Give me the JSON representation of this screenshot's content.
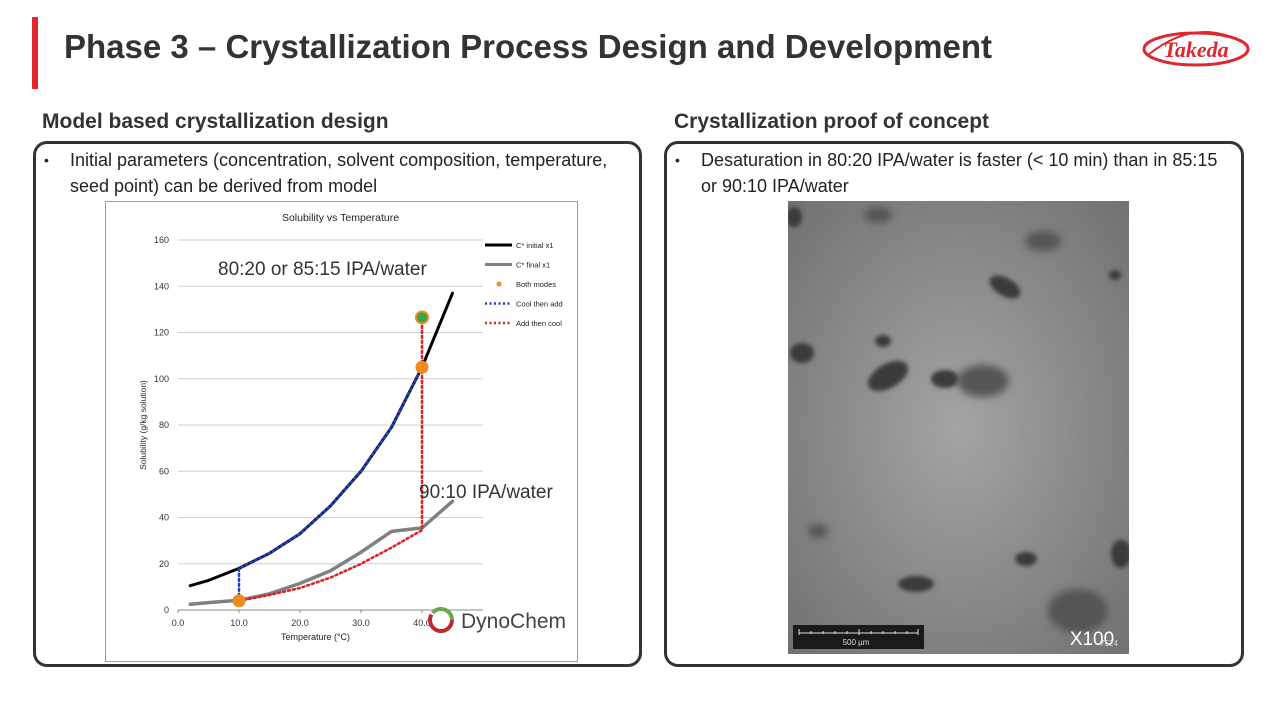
{
  "header": {
    "title": "Phase 3 – Crystallization Process Design and Development",
    "logo_text": "Takeda",
    "accent_color": "#e0262f"
  },
  "left": {
    "heading": "Model based crystallization design",
    "bullet": "Initial parameters (concentration, solvent composition, temperature, seed point) can be derived from model"
  },
  "right": {
    "heading": "Crystallization proof of concept",
    "bullet": "Desaturation in 80:20 IPA/water is faster (< 10 min) than in 85:15 or 90:10 IPA/water",
    "image": {
      "scale_label": "500 µm",
      "magnification": "X100",
      "corner_code": "7524"
    }
  },
  "chart_data": {
    "type": "line",
    "title": "Solubility vs Temperature",
    "xlabel": "Temperature (°C)",
    "ylabel": "Solubility (g/kg solution)",
    "xlim": [
      0,
      50
    ],
    "ylim": [
      0,
      160
    ],
    "x_ticks": [
      "0.0",
      "10.0",
      "20.0",
      "30.0",
      "40.0"
    ],
    "y_ticks": [
      "0",
      "20",
      "40",
      "60",
      "80",
      "100",
      "120",
      "140",
      "160"
    ],
    "grid": "horizontal",
    "legend_position": "right",
    "annotations": [
      {
        "text": "80:20 or 85:15 IPA/water"
      },
      {
        "text": "90:10 IPA/water"
      }
    ],
    "branding": "DynoChem",
    "series": [
      {
        "name": "C* initial x1",
        "color": "#000000",
        "style": "solid",
        "x": [
          2,
          5,
          10,
          15,
          20,
          25,
          30,
          35,
          40,
          45
        ],
        "y": [
          10.5,
          12.8,
          18,
          24.5,
          33,
          45,
          60,
          79,
          105,
          137
        ]
      },
      {
        "name": "C* final x1",
        "color": "#808080",
        "style": "solid",
        "x": [
          2,
          5,
          10,
          15,
          20,
          25,
          30,
          35,
          40,
          45
        ],
        "y": [
          2.5,
          3.2,
          4.2,
          7,
          11.5,
          17,
          25,
          34,
          35.5,
          47
        ]
      },
      {
        "name": "Both modes",
        "color": "#f08a1c",
        "style": "marker",
        "x": [
          10,
          40
        ],
        "y": [
          4,
          105
        ]
      },
      {
        "name": "Cool then add",
        "color": "#1f3fbf",
        "style": "dotted",
        "x": [
          10,
          10,
          15,
          20,
          25,
          30,
          35,
          40
        ],
        "y": [
          4,
          18,
          24.5,
          33,
          45,
          60,
          79,
          105
        ]
      },
      {
        "name": "Add then cool",
        "color": "#e02020",
        "style": "dotted",
        "x": [
          10,
          15,
          20,
          25,
          30,
          35,
          40,
          40,
          40
        ],
        "y": [
          4,
          6.5,
          9.5,
          14,
          20,
          27,
          34.5,
          105,
          125
        ]
      }
    ],
    "extra_points": [
      {
        "x": 40,
        "y": 126.5,
        "color": "#2fa84f"
      }
    ]
  }
}
